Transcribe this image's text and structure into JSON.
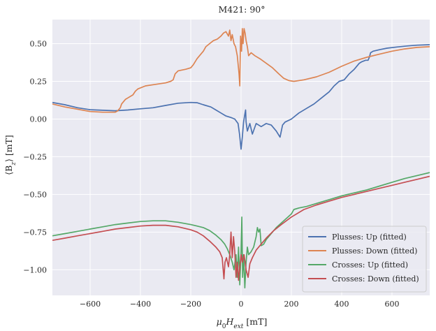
{
  "chart_data": {
    "type": "line",
    "title": "M421: 90°",
    "xlabel": "μ0Hext [mT]",
    "xlabel_main": "μ",
    "xlabel_sub1": "0",
    "xlabel_mid": "H",
    "xlabel_sub2": "ext",
    "xlabel_unit": " [mT]",
    "ylabel": "⟨Bz⟩ [mT]",
    "ylabel_main": "⟨B",
    "ylabel_sub": "z",
    "ylabel_rest": "⟩ [mT]",
    "xlim": [
      -750,
      750
    ],
    "ylim": [
      -1.17,
      0.66
    ],
    "xticks": [
      -600,
      -400,
      -200,
      0,
      200,
      400,
      600
    ],
    "xtick_labels": [
      "−600",
      "−400",
      "−200",
      "0",
      "200",
      "400",
      "600"
    ],
    "yticks": [
      0.5,
      0.25,
      0.0,
      -0.25,
      -0.5,
      -0.75,
      -1.0
    ],
    "ytick_labels": [
      "0.50",
      "0.25",
      "0.00",
      "−0.25",
      "−0.50",
      "−0.75",
      "−1.00"
    ],
    "grid": true,
    "legend_position": "lower-right",
    "series": [
      {
        "name": "Plusses: Up (fitted)",
        "color": "#4c72b0",
        "points": [
          [
            -750,
            0.11
          ],
          [
            -700,
            0.095
          ],
          [
            -650,
            0.075
          ],
          [
            -600,
            0.062
          ],
          [
            -550,
            0.058
          ],
          [
            -500,
            0.055
          ],
          [
            -450,
            0.06
          ],
          [
            -400,
            0.068
          ],
          [
            -350,
            0.075
          ],
          [
            -300,
            0.09
          ],
          [
            -250,
            0.105
          ],
          [
            -200,
            0.11
          ],
          [
            -175,
            0.108
          ],
          [
            -150,
            0.095
          ],
          [
            -120,
            0.08
          ],
          [
            -100,
            0.06
          ],
          [
            -80,
            0.04
          ],
          [
            -60,
            0.02
          ],
          [
            -40,
            0.01
          ],
          [
            -25,
            0.0
          ],
          [
            -12,
            -0.03
          ],
          [
            -6,
            -0.1
          ],
          [
            0,
            -0.2
          ],
          [
            5,
            -0.12
          ],
          [
            10,
            -0.02
          ],
          [
            14,
            0.02
          ],
          [
            18,
            0.06
          ],
          [
            20,
            -0.02
          ],
          [
            25,
            -0.08
          ],
          [
            35,
            -0.03
          ],
          [
            45,
            -0.1
          ],
          [
            60,
            -0.03
          ],
          [
            80,
            -0.05
          ],
          [
            100,
            -0.03
          ],
          [
            120,
            -0.04
          ],
          [
            140,
            -0.08
          ],
          [
            155,
            -0.12
          ],
          [
            165,
            -0.04
          ],
          [
            175,
            -0.02
          ],
          [
            200,
            0.0
          ],
          [
            230,
            0.04
          ],
          [
            260,
            0.07
          ],
          [
            290,
            0.1
          ],
          [
            320,
            0.14
          ],
          [
            350,
            0.18
          ],
          [
            370,
            0.22
          ],
          [
            390,
            0.25
          ],
          [
            410,
            0.26
          ],
          [
            430,
            0.3
          ],
          [
            450,
            0.33
          ],
          [
            470,
            0.37
          ],
          [
            480,
            0.38
          ],
          [
            495,
            0.39
          ],
          [
            505,
            0.39
          ],
          [
            510,
            0.41
          ],
          [
            515,
            0.44
          ],
          [
            525,
            0.45
          ],
          [
            550,
            0.46
          ],
          [
            580,
            0.47
          ],
          [
            620,
            0.478
          ],
          [
            660,
            0.485
          ],
          [
            700,
            0.49
          ],
          [
            750,
            0.493
          ]
        ]
      },
      {
        "name": "Plusses: Down (fitted)",
        "color": "#dd8452",
        "points": [
          [
            -750,
            0.1
          ],
          [
            -700,
            0.08
          ],
          [
            -650,
            0.065
          ],
          [
            -600,
            0.05
          ],
          [
            -550,
            0.045
          ],
          [
            -500,
            0.045
          ],
          [
            -490,
            0.055
          ],
          [
            -480,
            0.075
          ],
          [
            -475,
            0.1
          ],
          [
            -460,
            0.13
          ],
          [
            -450,
            0.14
          ],
          [
            -430,
            0.16
          ],
          [
            -420,
            0.185
          ],
          [
            -410,
            0.2
          ],
          [
            -380,
            0.22
          ],
          [
            -340,
            0.23
          ],
          [
            -300,
            0.24
          ],
          [
            -280,
            0.25
          ],
          [
            -270,
            0.26
          ],
          [
            -262,
            0.3
          ],
          [
            -250,
            0.32
          ],
          [
            -220,
            0.33
          ],
          [
            -200,
            0.34
          ],
          [
            -190,
            0.36
          ],
          [
            -175,
            0.4
          ],
          [
            -160,
            0.43
          ],
          [
            -150,
            0.45
          ],
          [
            -140,
            0.48
          ],
          [
            -125,
            0.5
          ],
          [
            -110,
            0.52
          ],
          [
            -95,
            0.53
          ],
          [
            -80,
            0.55
          ],
          [
            -70,
            0.57
          ],
          [
            -60,
            0.58
          ],
          [
            -50,
            0.55
          ],
          [
            -45,
            0.59
          ],
          [
            -40,
            0.52
          ],
          [
            -35,
            0.56
          ],
          [
            -28,
            0.5
          ],
          [
            -22,
            0.48
          ],
          [
            -15,
            0.42
          ],
          [
            -8,
            0.3
          ],
          [
            -5,
            0.22
          ],
          [
            -2,
            0.55
          ],
          [
            2,
            0.45
          ],
          [
            5,
            0.6
          ],
          [
            8,
            0.5
          ],
          [
            12,
            0.6
          ],
          [
            16,
            0.57
          ],
          [
            20,
            0.52
          ],
          [
            25,
            0.48
          ],
          [
            30,
            0.42
          ],
          [
            40,
            0.44
          ],
          [
            55,
            0.42
          ],
          [
            75,
            0.4
          ],
          [
            100,
            0.37
          ],
          [
            125,
            0.34
          ],
          [
            150,
            0.3
          ],
          [
            170,
            0.27
          ],
          [
            190,
            0.255
          ],
          [
            210,
            0.25
          ],
          [
            250,
            0.26
          ],
          [
            300,
            0.28
          ],
          [
            350,
            0.31
          ],
          [
            400,
            0.35
          ],
          [
            450,
            0.385
          ],
          [
            500,
            0.41
          ],
          [
            550,
            0.43
          ],
          [
            600,
            0.45
          ],
          [
            650,
            0.465
          ],
          [
            700,
            0.475
          ],
          [
            750,
            0.48
          ]
        ]
      },
      {
        "name": "Crosses: Up (fitted)",
        "color": "#55a868",
        "points": [
          [
            -750,
            -0.775
          ],
          [
            -700,
            -0.76
          ],
          [
            -650,
            -0.745
          ],
          [
            -600,
            -0.73
          ],
          [
            -550,
            -0.715
          ],
          [
            -500,
            -0.7
          ],
          [
            -450,
            -0.69
          ],
          [
            -400,
            -0.68
          ],
          [
            -350,
            -0.675
          ],
          [
            -300,
            -0.675
          ],
          [
            -250,
            -0.685
          ],
          [
            -200,
            -0.7
          ],
          [
            -175,
            -0.71
          ],
          [
            -150,
            -0.72
          ],
          [
            -125,
            -0.74
          ],
          [
            -100,
            -0.77
          ],
          [
            -80,
            -0.8
          ],
          [
            -65,
            -0.83
          ],
          [
            -55,
            -0.86
          ],
          [
            -45,
            -0.9
          ],
          [
            -35,
            -0.95
          ],
          [
            -28,
            -1.0
          ],
          [
            -20,
            -0.9
          ],
          [
            -15,
            -1.05
          ],
          [
            -10,
            -0.85
          ],
          [
            -5,
            -1.1
          ],
          [
            0,
            -0.88
          ],
          [
            3,
            -0.65
          ],
          [
            6,
            -1.05
          ],
          [
            10,
            -0.9
          ],
          [
            15,
            -1.12
          ],
          [
            20,
            -0.95
          ],
          [
            25,
            -0.85
          ],
          [
            30,
            -0.9
          ],
          [
            40,
            -0.88
          ],
          [
            50,
            -0.85
          ],
          [
            60,
            -0.78
          ],
          [
            65,
            -0.72
          ],
          [
            70,
            -0.75
          ],
          [
            75,
            -0.73
          ],
          [
            80,
            -0.84
          ],
          [
            90,
            -0.83
          ],
          [
            100,
            -0.8
          ],
          [
            120,
            -0.76
          ],
          [
            140,
            -0.72
          ],
          [
            160,
            -0.69
          ],
          [
            180,
            -0.66
          ],
          [
            200,
            -0.63
          ],
          [
            210,
            -0.6
          ],
          [
            230,
            -0.59
          ],
          [
            260,
            -0.58
          ],
          [
            300,
            -0.56
          ],
          [
            350,
            -0.535
          ],
          [
            400,
            -0.51
          ],
          [
            450,
            -0.49
          ],
          [
            500,
            -0.47
          ],
          [
            550,
            -0.445
          ],
          [
            600,
            -0.42
          ],
          [
            650,
            -0.395
          ],
          [
            700,
            -0.375
          ],
          [
            750,
            -0.355
          ]
        ]
      },
      {
        "name": "Crosses: Down (fitted)",
        "color": "#c44e52",
        "points": [
          [
            -750,
            -0.805
          ],
          [
            -700,
            -0.79
          ],
          [
            -650,
            -0.775
          ],
          [
            -600,
            -0.76
          ],
          [
            -550,
            -0.745
          ],
          [
            -500,
            -0.73
          ],
          [
            -450,
            -0.72
          ],
          [
            -400,
            -0.71
          ],
          [
            -350,
            -0.705
          ],
          [
            -300,
            -0.705
          ],
          [
            -250,
            -0.715
          ],
          [
            -200,
            -0.735
          ],
          [
            -175,
            -0.75
          ],
          [
            -150,
            -0.775
          ],
          [
            -125,
            -0.81
          ],
          [
            -100,
            -0.85
          ],
          [
            -85,
            -0.88
          ],
          [
            -75,
            -0.92
          ],
          [
            -68,
            -1.06
          ],
          [
            -64,
            -0.95
          ],
          [
            -58,
            -0.92
          ],
          [
            -50,
            -0.98
          ],
          [
            -45,
            -0.9
          ],
          [
            -40,
            -0.75
          ],
          [
            -35,
            -0.92
          ],
          [
            -30,
            -0.78
          ],
          [
            -25,
            -0.88
          ],
          [
            -20,
            -1.05
          ],
          [
            -15,
            -0.95
          ],
          [
            -10,
            -1.07
          ],
          [
            -5,
            -0.98
          ],
          [
            0,
            -0.9
          ],
          [
            5,
            -0.95
          ],
          [
            12,
            -0.9
          ],
          [
            20,
            -1.0
          ],
          [
            28,
            -1.05
          ],
          [
            35,
            -0.96
          ],
          [
            45,
            -0.92
          ],
          [
            60,
            -0.87
          ],
          [
            80,
            -0.83
          ],
          [
            100,
            -0.79
          ],
          [
            130,
            -0.74
          ],
          [
            160,
            -0.7
          ],
          [
            200,
            -0.65
          ],
          [
            250,
            -0.6
          ],
          [
            300,
            -0.57
          ],
          [
            350,
            -0.545
          ],
          [
            400,
            -0.52
          ],
          [
            450,
            -0.5
          ],
          [
            500,
            -0.48
          ],
          [
            550,
            -0.46
          ],
          [
            600,
            -0.44
          ],
          [
            650,
            -0.42
          ],
          [
            700,
            -0.4
          ],
          [
            750,
            -0.38
          ]
        ]
      }
    ]
  }
}
